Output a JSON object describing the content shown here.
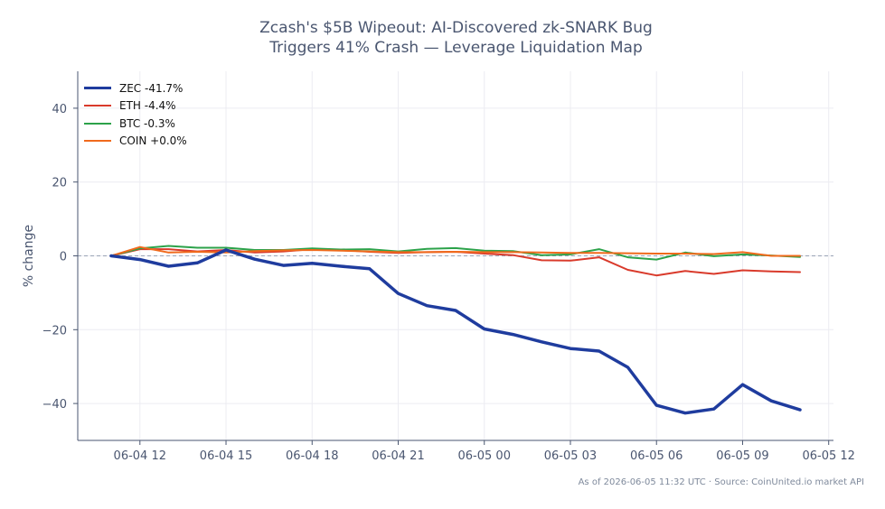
{
  "chart_data": {
    "type": "line",
    "title_line1": "Zcash's $5B Wipeout: AI-Discovered zk-SNARK Bug",
    "title_line2": "Triggers 41% Crash — Leverage Liquidation Map",
    "ylabel": "% change",
    "footer": "As of 2026-06-05 11:32 UTC · Source: CoinUnited.io market API",
    "ylim": [
      -50,
      50
    ],
    "xlim": [
      "06-04 09:50",
      "06-05 12:10"
    ],
    "yticks": [
      40,
      20,
      0,
      -20,
      -40
    ],
    "ytick_labels": [
      "40",
      "20",
      "0",
      "−20",
      "−40"
    ],
    "xticks": [
      "06-04 12:00",
      "06-04 15:00",
      "06-04 18:00",
      "06-04 21:00",
      "06-05 00:00",
      "06-05 03:00",
      "06-05 06:00",
      "06-05 09:00",
      "06-05 12:00"
    ],
    "xtick_labels": [
      "06-04 12",
      "06-04 15",
      "06-04 18",
      "06-04 21",
      "06-05 00",
      "06-05 03",
      "06-05 06",
      "06-05 09",
      "06-05 12"
    ],
    "grid": true,
    "zero_line": true,
    "legend_position": "top-left",
    "x": [
      "06-04 11:00",
      "06-04 12:00",
      "06-04 13:00",
      "06-04 14:00",
      "06-04 15:00",
      "06-04 16:00",
      "06-04 17:00",
      "06-04 18:00",
      "06-04 19:00",
      "06-04 20:00",
      "06-04 21:00",
      "06-04 22:00",
      "06-04 23:00",
      "06-05 00:00",
      "06-05 01:00",
      "06-05 02:00",
      "06-05 03:00",
      "06-05 04:00",
      "06-05 05:00",
      "06-05 06:00",
      "06-05 07:00",
      "06-05 08:00",
      "06-05 09:00",
      "06-05 10:00",
      "06-05 11:00"
    ],
    "series": [
      {
        "name": "ETH -4.4%",
        "color": "#d93a2b",
        "width": 2,
        "values": [
          0,
          1.8,
          1.8,
          1.2,
          1.6,
          0.9,
          1.2,
          1.8,
          1.6,
          1.1,
          0.8,
          1.0,
          1.1,
          0.6,
          0.2,
          -1.2,
          -1.3,
          -0.4,
          -3.8,
          -5.3,
          -4.1,
          -4.9,
          -3.9,
          -4.2,
          -4.4
        ]
      },
      {
        "name": "BTC -0.3%",
        "color": "#2ca24a",
        "width": 2,
        "values": [
          0,
          2.0,
          2.7,
          2.2,
          2.2,
          1.6,
          1.6,
          2.0,
          1.7,
          1.8,
          1.2,
          1.9,
          2.1,
          1.4,
          1.3,
          0.2,
          0.4,
          1.8,
          -0.4,
          -1.0,
          0.9,
          -0.1,
          0.4,
          0.1,
          -0.3
        ]
      },
      {
        "name": "COIN +0.0%",
        "color": "#f06a1c",
        "width": 2,
        "values": [
          0,
          2.4,
          0.9,
          1.1,
          0.9,
          1.3,
          1.5,
          1.6,
          1.4,
          1.2,
          1.0,
          1.0,
          1.1,
          1.0,
          1.0,
          0.9,
          0.8,
          0.8,
          0.7,
          0.6,
          0.6,
          0.5,
          1.0,
          0.0,
          0.0
        ]
      },
      {
        "name": "ZEC -41.7%",
        "color": "#1f3c9e",
        "width": 3.5,
        "values": [
          0,
          -1.0,
          -2.8,
          -1.9,
          1.6,
          -0.9,
          -2.6,
          -2.0,
          -2.8,
          -3.5,
          -10.2,
          -13.5,
          -14.8,
          -19.8,
          -21.3,
          -23.3,
          -25.1,
          -25.8,
          -30.2,
          -40.5,
          -42.6,
          -41.5,
          -34.9,
          -39.3,
          -41.7
        ]
      }
    ],
    "legend_order": [
      "ZEC -41.7%",
      "ETH -4.4%",
      "BTC -0.3%",
      "COIN +0.0%"
    ],
    "axis_color": "#4a5670",
    "grid_color": "#ececf2",
    "zero_line_color": "#9aa3b5"
  }
}
